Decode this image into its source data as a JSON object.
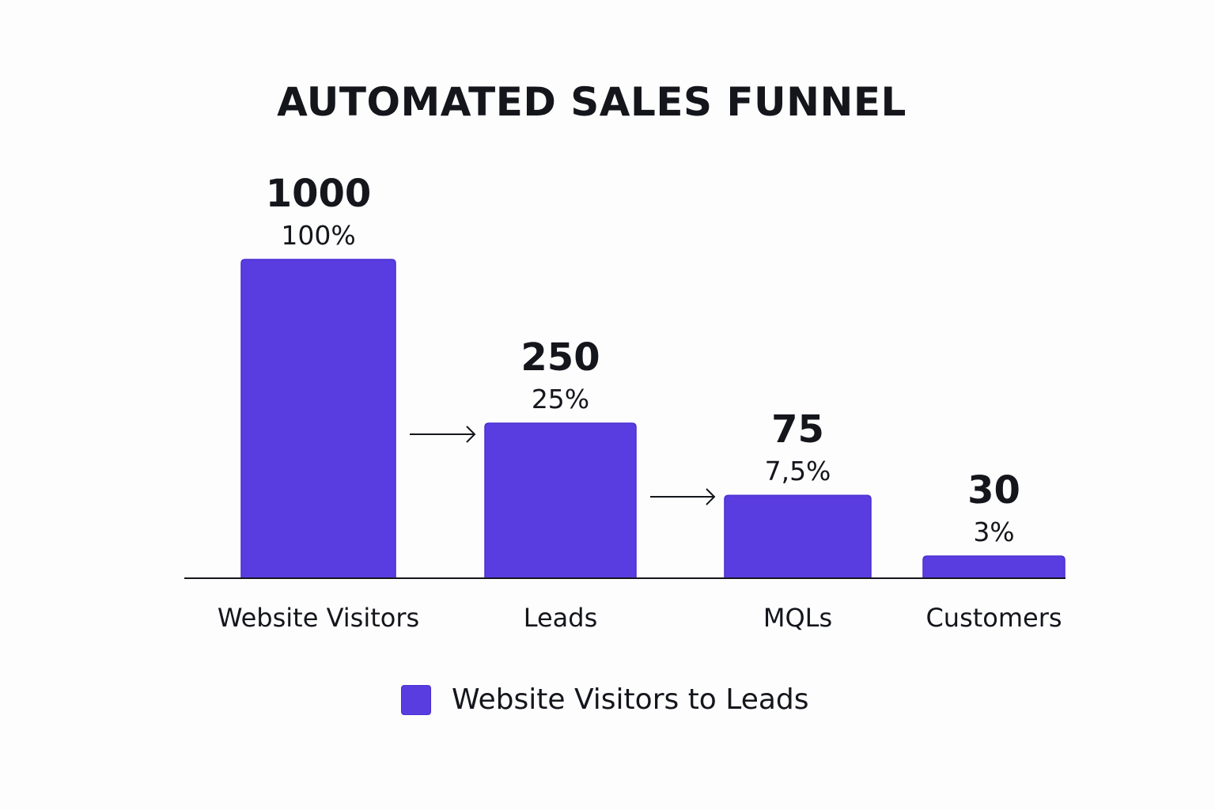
{
  "chart_data": {
    "type": "bar",
    "title": "AUTOMATED SALES FUNNEL",
    "categories": [
      "Website Visitors",
      "Leads",
      "MQLs",
      "Customers"
    ],
    "values": [
      1000,
      250,
      75,
      30
    ],
    "value_labels": [
      "1000",
      "250",
      "75",
      "30"
    ],
    "percent_labels": [
      "100%",
      "25%",
      "7,5%",
      "3%"
    ],
    "series": [
      {
        "name": "Website Visitors to Leads",
        "values": [
          1000,
          250,
          75,
          30
        ]
      }
    ],
    "arrows_between": [
      [
        "Website Visitors",
        "Leads"
      ],
      [
        "Leads",
        "MQLs"
      ]
    ],
    "xlabel": "",
    "ylabel": "",
    "grid": false,
    "legend_position": "bottom-center",
    "colors": {
      "bar": "#5a3de0",
      "bar_border": "#4a2fd0",
      "text": "#14161c",
      "axis": "#14161c"
    }
  }
}
